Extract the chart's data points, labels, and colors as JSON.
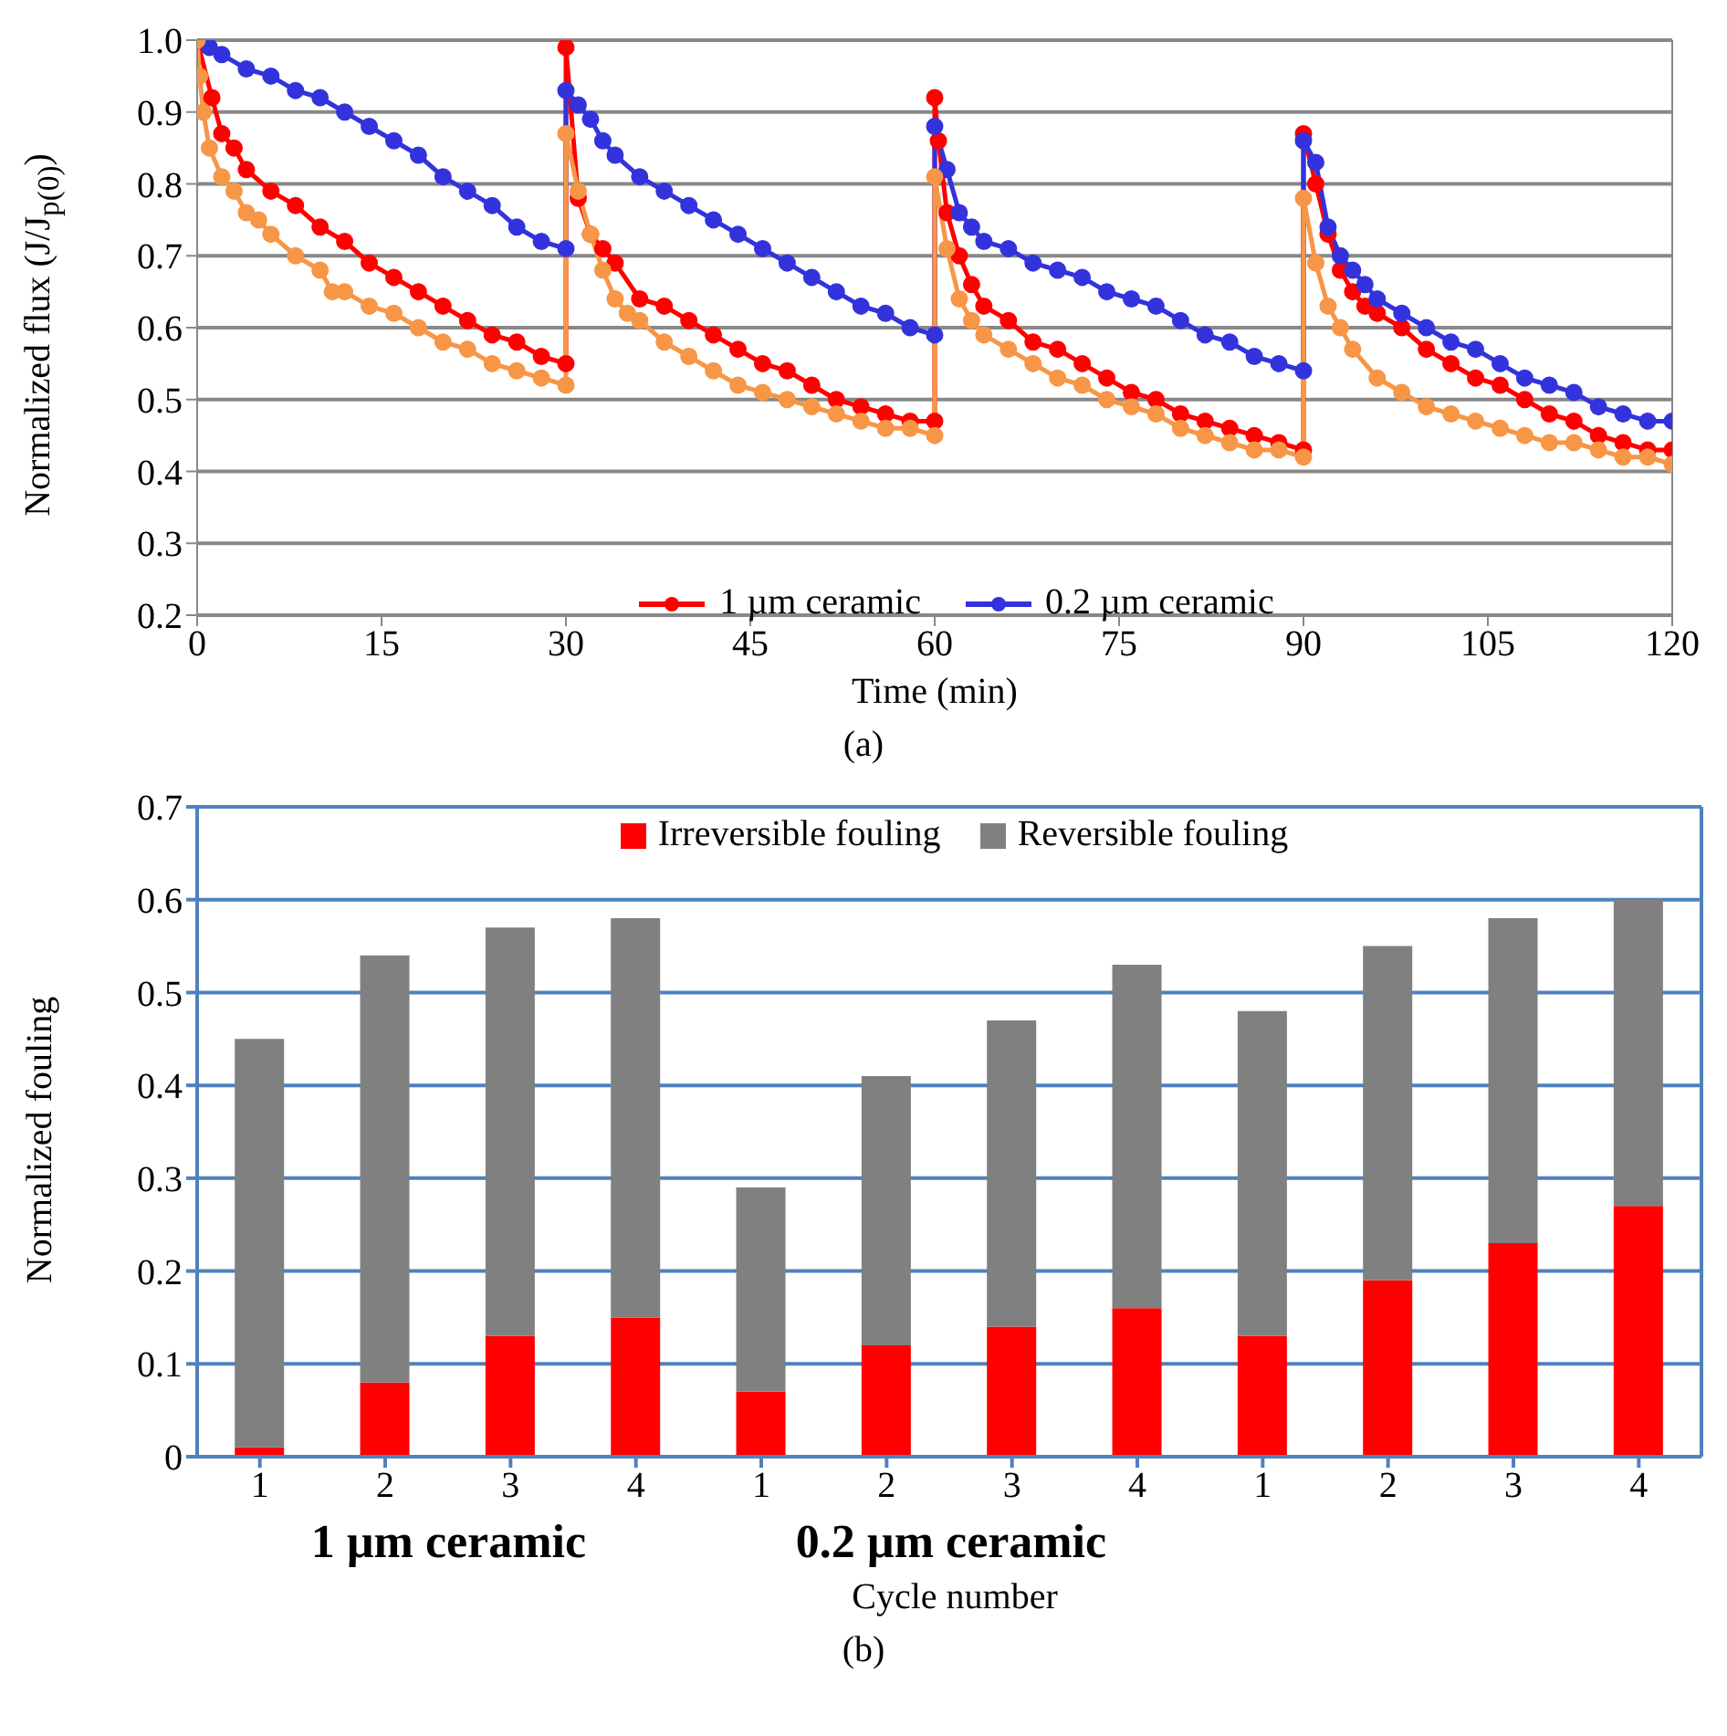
{
  "chart_data": [
    {
      "type": "line",
      "xlabel": "Time (min)",
      "ylabel": "Normalized flux (J/J$_{p(0)}$)",
      "xlim": [
        0,
        120
      ],
      "xticks": [
        0,
        15,
        30,
        45,
        60,
        75,
        90,
        105,
        120
      ],
      "ylim": [
        0.2,
        1.0
      ],
      "yticks": [
        0.2,
        0.3,
        0.4,
        0.5,
        0.6,
        0.7,
        0.8,
        0.9,
        {
          "value": 1.0,
          "label": "1.0"
        }
      ],
      "grid": "y",
      "legend": "bottom",
      "marker": "circle",
      "line_style": "solid",
      "annotations": [
        "(a)"
      ],
      "series": [
        {
          "name": "1 µm ceramic",
          "color": "#ff0000",
          "x": [
            0,
            1.2,
            2,
            3,
            4,
            6,
            8,
            10,
            12,
            14,
            16,
            18,
            20,
            22,
            24,
            26,
            28,
            30,
            30,
            31,
            32,
            33,
            34,
            36,
            38,
            40,
            42,
            44,
            46,
            48,
            50,
            52,
            54,
            56,
            58,
            60,
            60,
            60.3,
            61,
            62,
            63,
            64,
            66,
            68,
            70,
            72,
            74,
            76,
            78,
            80,
            82,
            84,
            86,
            88,
            90,
            90,
            91,
            92,
            93,
            94,
            95,
            96,
            98,
            100,
            102,
            104,
            106,
            108,
            110,
            112,
            114,
            116,
            118,
            120
          ],
          "values": [
            1.0,
            0.92,
            0.87,
            0.85,
            0.82,
            0.79,
            0.77,
            0.74,
            0.72,
            0.69,
            0.67,
            0.65,
            0.63,
            0.61,
            0.59,
            0.58,
            0.56,
            0.55,
            0.99,
            0.78,
            0.73,
            0.71,
            0.69,
            0.64,
            0.63,
            0.61,
            0.59,
            0.57,
            0.55,
            0.54,
            0.52,
            0.5,
            0.49,
            0.48,
            0.47,
            0.47,
            0.92,
            0.86,
            0.76,
            0.7,
            0.66,
            0.63,
            0.61,
            0.58,
            0.57,
            0.55,
            0.53,
            0.51,
            0.5,
            0.48,
            0.47,
            0.46,
            0.45,
            0.44,
            0.43,
            0.87,
            0.8,
            0.73,
            0.68,
            0.65,
            0.63,
            0.62,
            0.6,
            0.57,
            0.55,
            0.53,
            0.52,
            0.5,
            0.48,
            0.47,
            0.45,
            0.44,
            0.43,
            0.43
          ]
        },
        {
          "name": "0.2 µm ceramic",
          "color": "#3333dd",
          "x": [
            0,
            1,
            2,
            4,
            6,
            8,
            10,
            12,
            14,
            16,
            18,
            20,
            22,
            24,
            26,
            28,
            30,
            30,
            31,
            32,
            33,
            34,
            36,
            38,
            40,
            42,
            44,
            46,
            48,
            50,
            52,
            54,
            56,
            58,
            60,
            60,
            61,
            62,
            63,
            64,
            66,
            68,
            70,
            72,
            74,
            76,
            78,
            80,
            82,
            84,
            86,
            88,
            90,
            90,
            91,
            92,
            93,
            94,
            95,
            96,
            98,
            100,
            102,
            104,
            106,
            108,
            110,
            112,
            114,
            116,
            118,
            120
          ],
          "values": [
            1.0,
            0.99,
            0.98,
            0.96,
            0.95,
            0.93,
            0.92,
            0.9,
            0.88,
            0.86,
            0.84,
            0.81,
            0.79,
            0.77,
            0.74,
            0.72,
            0.71,
            0.93,
            0.91,
            0.89,
            0.86,
            0.84,
            0.81,
            0.79,
            0.77,
            0.75,
            0.73,
            0.71,
            0.69,
            0.67,
            0.65,
            0.63,
            0.62,
            0.6,
            0.59,
            0.88,
            0.82,
            0.76,
            0.74,
            0.72,
            0.71,
            0.69,
            0.68,
            0.67,
            0.65,
            0.64,
            0.63,
            0.61,
            0.59,
            0.58,
            0.56,
            0.55,
            0.54,
            0.86,
            0.83,
            0.74,
            0.7,
            0.68,
            0.66,
            0.64,
            0.62,
            0.6,
            0.58,
            0.57,
            0.55,
            0.53,
            0.52,
            0.51,
            0.49,
            0.48,
            0.47,
            0.47
          ]
        },
        {
          "color": "#f79646",
          "x": [
            0,
            0.2,
            0.5,
            1,
            2,
            3,
            4,
            5,
            6,
            8,
            10,
            11,
            12,
            14,
            16,
            18,
            20,
            22,
            24,
            26,
            28,
            30,
            30,
            31,
            32,
            33,
            34,
            35,
            36,
            38,
            40,
            42,
            44,
            46,
            48,
            50,
            52,
            54,
            56,
            58,
            60,
            60,
            61,
            62,
            63,
            64,
            66,
            68,
            70,
            72,
            74,
            76,
            78,
            80,
            82,
            84,
            86,
            88,
            90,
            90,
            91,
            92,
            93,
            94,
            96,
            98,
            100,
            102,
            104,
            106,
            108,
            110,
            112,
            114,
            116,
            118,
            120
          ],
          "values": [
            1.0,
            0.95,
            0.9,
            0.85,
            0.81,
            0.79,
            0.76,
            0.75,
            0.73,
            0.7,
            0.68,
            0.65,
            0.65,
            0.63,
            0.62,
            0.6,
            0.58,
            0.57,
            0.55,
            0.54,
            0.53,
            0.52,
            0.87,
            0.79,
            0.73,
            0.68,
            0.64,
            0.62,
            0.61,
            0.58,
            0.56,
            0.54,
            0.52,
            0.51,
            0.5,
            0.49,
            0.48,
            0.47,
            0.46,
            0.46,
            0.45,
            0.81,
            0.71,
            0.64,
            0.61,
            0.59,
            0.57,
            0.55,
            0.53,
            0.52,
            0.5,
            0.49,
            0.48,
            0.46,
            0.45,
            0.44,
            0.43,
            0.43,
            0.42,
            0.78,
            0.69,
            0.63,
            0.6,
            0.57,
            0.53,
            0.51,
            0.49,
            0.48,
            0.47,
            0.46,
            0.45,
            0.44,
            0.44,
            0.43,
            0.42,
            0.42,
            0.41
          ]
        }
      ]
    },
    {
      "type": "bar",
      "stacked": true,
      "xlabel": "Cycle number",
      "ylabel": "Normalized fouling",
      "categories": [
        "1",
        "2",
        "3",
        "4",
        "1",
        "2",
        "3",
        "4",
        "1",
        "2",
        "3",
        "4"
      ],
      "ylim": [
        0,
        0.7
      ],
      "yticks": [
        0,
        0.1,
        0.2,
        0.3,
        0.4,
        0.5,
        0.6,
        0.7
      ],
      "grid": "y",
      "legend": "top",
      "annotations": [
        "1 µm ceramic",
        "0.2 µm ceramic",
        "(b)"
      ],
      "series": [
        {
          "name": "Irreversible fouling",
          "color": "#ff0000",
          "values": [
            0.01,
            0.08,
            0.13,
            0.15,
            0.07,
            0.12,
            0.14,
            0.16,
            0.13,
            0.19,
            0.23,
            0.27
          ]
        },
        {
          "name": "Reversible fouling",
          "color": "#808080",
          "values": [
            0.44,
            0.46,
            0.44,
            0.43,
            0.22,
            0.29,
            0.33,
            0.37,
            0.35,
            0.36,
            0.35,
            0.33
          ]
        }
      ]
    }
  ]
}
